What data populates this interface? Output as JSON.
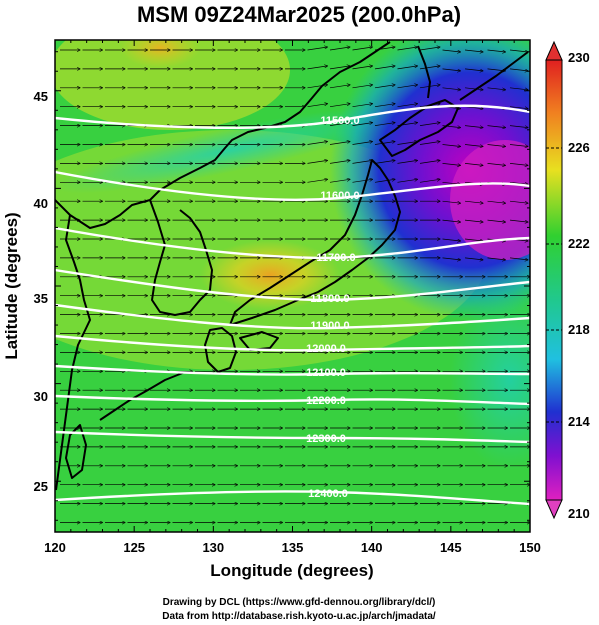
{
  "title": "MSM 09Z24Mar2025 (200.0hPa)",
  "credits": {
    "line1": "Drawing by DCL (https://www.gfd-dennou.org/library/dcl/)",
    "line2": "Data from http://database.rish.kyoto-u.ac.jp/arch/jmadata/"
  },
  "map": {
    "lon_range": [
      120,
      150
    ],
    "lat_range": [
      22.4,
      47.6
    ],
    "xlabel": "Longitude (degrees)",
    "ylabel": "Latitude  (degrees)",
    "x_ticks": [
      "120",
      "125",
      "130",
      "135",
      "140",
      "145",
      "150"
    ],
    "y_ticks": [
      "25",
      "30",
      "35",
      "40",
      "45"
    ]
  },
  "colorbar": {
    "labels": [
      "230",
      "226",
      "222",
      "218",
      "214",
      "210"
    ],
    "min": 210,
    "max": 230
  },
  "contours": [
    {
      "label": "11500.0"
    },
    {
      "label": "11600.0"
    },
    {
      "label": "11700.0"
    },
    {
      "label": "11800.0"
    },
    {
      "label": "11900.0"
    },
    {
      "label": "12000.0"
    },
    {
      "label": "12100.0"
    },
    {
      "label": "12200.0"
    },
    {
      "label": "12300.0"
    },
    {
      "label": "12400.0"
    }
  ]
}
